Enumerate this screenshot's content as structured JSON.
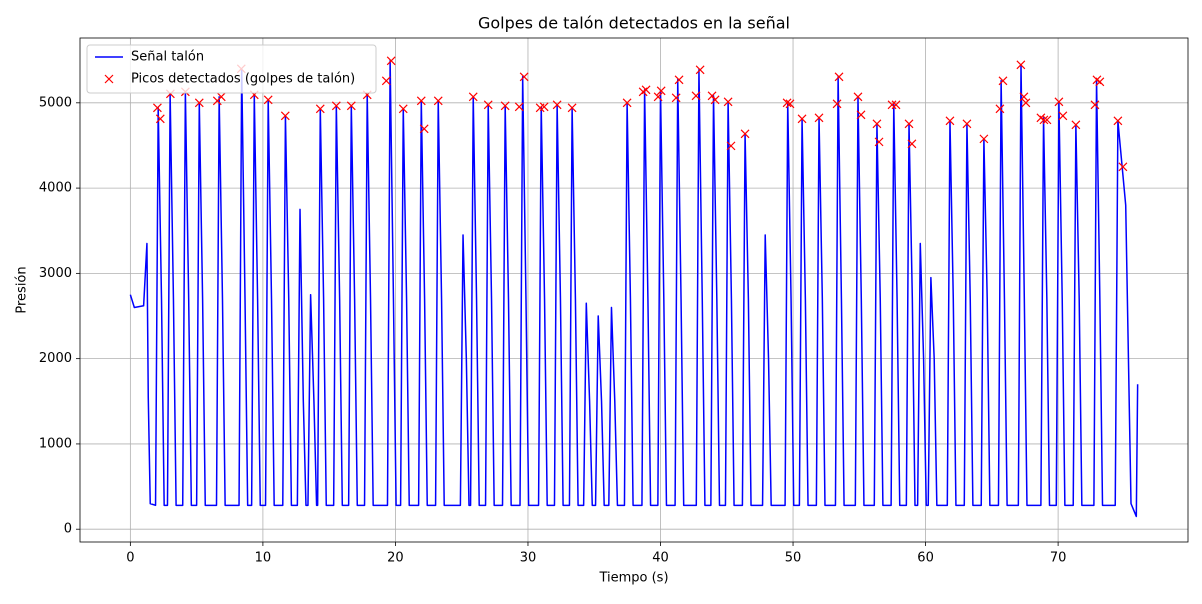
{
  "chart_data": {
    "type": "line",
    "title": "Golpes de talón detectados en la señal",
    "xlabel": "Tiempo (s)",
    "ylabel": "Presión",
    "xlim": [
      -3.8,
      79.8
    ],
    "ylim": [
      -150,
      5760
    ],
    "xticks": [
      0,
      10,
      20,
      30,
      40,
      50,
      60,
      70
    ],
    "yticks": [
      0,
      1000,
      2000,
      3000,
      4000,
      5000
    ],
    "grid": true,
    "legend": "upper left",
    "series": [
      {
        "name": "Señal talón",
        "type": "line",
        "color": "#0000ff",
        "x": [
          0,
          0.3,
          1.0,
          1.25,
          1.35,
          1.5,
          1.9,
          2.1,
          2.35,
          2.55,
          2.8,
          3.0,
          3.25,
          3.45,
          3.95,
          4.15,
          4.4,
          4.6,
          5.0,
          5.2,
          5.45,
          5.65,
          6.5,
          6.7,
          6.95,
          7.15,
          8.2,
          8.4,
          8.65,
          8.85,
          9.15,
          9.35,
          9.6,
          9.8,
          10.2,
          10.4,
          10.65,
          10.85,
          11.5,
          11.7,
          11.95,
          12.15,
          12.6,
          12.8,
          13.05,
          13.25,
          13.4,
          13.6,
          13.85,
          14.05,
          14.13,
          14.33,
          14.58,
          14.78,
          15.34,
          15.54,
          15.79,
          15.99,
          16.47,
          16.67,
          16.92,
          17.12,
          17.67,
          17.87,
          18.12,
          18.32,
          19.4,
          19.6,
          19.85,
          20.05,
          20.39,
          20.59,
          20.84,
          21.04,
          21.75,
          21.95,
          22.2,
          22.4,
          23.03,
          23.23,
          23.48,
          23.68,
          24.9,
          25.1,
          25.35,
          25.55,
          25.67,
          25.87,
          26.12,
          26.32,
          26.8,
          27.0,
          27.25,
          27.45,
          28.08,
          28.28,
          28.53,
          28.73,
          29.4,
          29.6,
          29.85,
          30.05,
          30.8,
          31.0,
          31.25,
          31.45,
          32.0,
          32.2,
          32.45,
          32.65,
          33.13,
          33.33,
          33.58,
          33.78,
          34.2,
          34.4,
          34.65,
          34.85,
          35.1,
          35.3,
          35.55,
          35.75,
          36.1,
          36.3,
          36.55,
          36.75,
          37.28,
          37.48,
          37.73,
          37.93,
          38.6,
          38.8,
          39.05,
          39.25,
          39.8,
          40.0,
          40.25,
          40.45,
          41.1,
          41.3,
          41.55,
          41.75,
          42.7,
          42.9,
          43.15,
          43.35,
          43.8,
          44.0,
          44.25,
          44.45,
          44.9,
          45.1,
          45.35,
          45.55,
          46.18,
          46.38,
          46.63,
          46.83,
          47.7,
          47.9,
          48.15,
          48.35,
          49.4,
          49.6,
          49.85,
          50.05,
          50.48,
          50.68,
          50.93,
          51.13,
          51.76,
          51.96,
          52.21,
          52.41,
          53.2,
          53.4,
          53.65,
          53.85,
          54.7,
          54.9,
          55.15,
          55.35,
          56.13,
          56.33,
          56.58,
          56.78,
          57.4,
          57.6,
          57.85,
          58.05,
          58.55,
          58.75,
          59.0,
          59.2,
          59.4,
          59.6,
          59.85,
          60.05,
          60.2,
          60.4,
          60.65,
          60.85,
          61.64,
          61.84,
          62.09,
          62.29,
          62.92,
          63.12,
          63.37,
          63.57,
          64.2,
          64.4,
          64.65,
          64.85,
          65.5,
          65.7,
          65.95,
          66.15,
          67.0,
          67.2,
          67.45,
          67.65,
          68.7,
          68.9,
          69.15,
          69.35,
          69.86,
          70.06,
          70.31,
          70.51,
          71.14,
          71.34,
          71.59,
          71.79,
          72.7,
          72.9,
          73.15,
          73.35,
          74.31,
          74.51,
          75.1,
          75.5,
          75.9,
          76.0
        ],
        "values": [
          2750,
          2600,
          2620,
          3350,
          1550,
          300,
          280,
          4941,
          2700,
          280,
          280,
          5106,
          2700,
          280,
          280,
          5129,
          2700,
          280,
          280,
          5000,
          2700,
          280,
          280,
          5070,
          2700,
          280,
          280,
          5399,
          2700,
          280,
          280,
          5094,
          2700,
          280,
          280,
          5035,
          2700,
          280,
          280,
          4847,
          2700,
          280,
          280,
          3750,
          1500,
          280,
          280,
          2750,
          1500,
          280,
          280,
          4930,
          2700,
          280,
          280,
          4965,
          2700,
          280,
          280,
          4965,
          2700,
          280,
          280,
          5094,
          2700,
          280,
          280,
          5493,
          2700,
          280,
          280,
          4930,
          2700,
          280,
          280,
          5023,
          2700,
          280,
          280,
          5023,
          2700,
          280,
          280,
          3450,
          2000,
          280,
          280,
          5070,
          2700,
          280,
          280,
          4977,
          2700,
          280,
          280,
          4965,
          2700,
          280,
          280,
          5305,
          2700,
          280,
          280,
          4953,
          2700,
          280,
          280,
          4977,
          2700,
          280,
          280,
          4941,
          2700,
          280,
          280,
          2650,
          1500,
          280,
          280,
          2500,
          1500,
          280,
          280,
          2600,
          1500,
          280,
          280,
          5000,
          2700,
          280,
          280,
          5153,
          2700,
          280,
          280,
          5141,
          2700,
          280,
          280,
          5270,
          2700,
          280,
          280,
          5387,
          2700,
          280,
          280,
          5082,
          2700,
          280,
          280,
          5012,
          2700,
          280,
          280,
          4636,
          2700,
          280,
          280,
          3450,
          2000,
          280,
          280,
          5000,
          2700,
          280,
          280,
          4812,
          2700,
          280,
          280,
          4824,
          2700,
          280,
          280,
          5305,
          2700,
          280,
          280,
          5070,
          2700,
          280,
          280,
          4754,
          2700,
          280,
          280,
          4977,
          2700,
          280,
          280,
          4754,
          2700,
          280,
          280,
          3350,
          2000,
          280,
          280,
          2950,
          2000,
          280,
          280,
          4789,
          2700,
          280,
          280,
          4754,
          2700,
          280,
          280,
          4577,
          2700,
          280,
          280,
          5258,
          2700,
          280,
          280,
          5446,
          2700,
          280,
          280,
          4824,
          2700,
          280,
          280,
          5012,
          2700,
          280,
          280,
          4742,
          2700,
          280,
          280,
          5270,
          2700,
          280,
          280,
          4789,
          3800,
          300,
          150,
          1700
        ]
      },
      {
        "name": "Picos detectados (golpes de talón)",
        "type": "scatter",
        "marker": "x",
        "color": "#ff0000",
        "x": [
          2.04,
          2.26,
          3.02,
          4.15,
          5.2,
          6.56,
          6.86,
          8.37,
          9.35,
          10.4,
          11.69,
          14.33,
          15.54,
          16.67,
          17.87,
          19.31,
          19.68,
          20.59,
          21.95,
          22.17,
          23.23,
          25.87,
          27.0,
          28.28,
          29.34,
          29.71,
          30.92,
          31.22,
          32.2,
          33.33,
          37.48,
          38.69,
          38.91,
          39.82,
          40.05,
          41.18,
          41.4,
          42.68,
          42.99,
          43.89,
          44.12,
          45.1,
          45.32,
          46.38,
          49.55,
          49.77,
          50.68,
          51.96,
          53.32,
          53.47,
          54.9,
          55.13,
          56.33,
          56.49,
          57.47,
          57.77,
          58.75,
          58.97,
          61.84,
          63.12,
          64.4,
          65.61,
          65.84,
          67.19,
          67.42,
          67.57,
          68.7,
          68.93,
          69.16,
          70.06,
          70.36,
          71.34,
          72.78,
          72.93,
          73.15,
          74.51,
          74.89
        ],
        "values": [
          4941,
          4812,
          5106,
          5129,
          5000,
          5023,
          5070,
          5399,
          5094,
          5035,
          4847,
          4930,
          4965,
          4965,
          5094,
          5258,
          5493,
          4930,
          5023,
          4695,
          5023,
          5070,
          4977,
          4965,
          4953,
          5305,
          4941,
          4953,
          4977,
          4941,
          5000,
          5129,
          5153,
          5070,
          5141,
          5059,
          5270,
          5082,
          5387,
          5082,
          5035,
          5012,
          4495,
          4636,
          5000,
          4988,
          4812,
          4824,
          4988,
          5305,
          5070,
          4859,
          4754,
          4542,
          4977,
          4977,
          4754,
          4519,
          4789,
          4754,
          4577,
          4930,
          5258,
          5446,
          5070,
          5000,
          4824,
          4800,
          4800,
          5012,
          4847,
          4742,
          4977,
          5270,
          5246,
          4789,
          4249
        ]
      }
    ]
  }
}
